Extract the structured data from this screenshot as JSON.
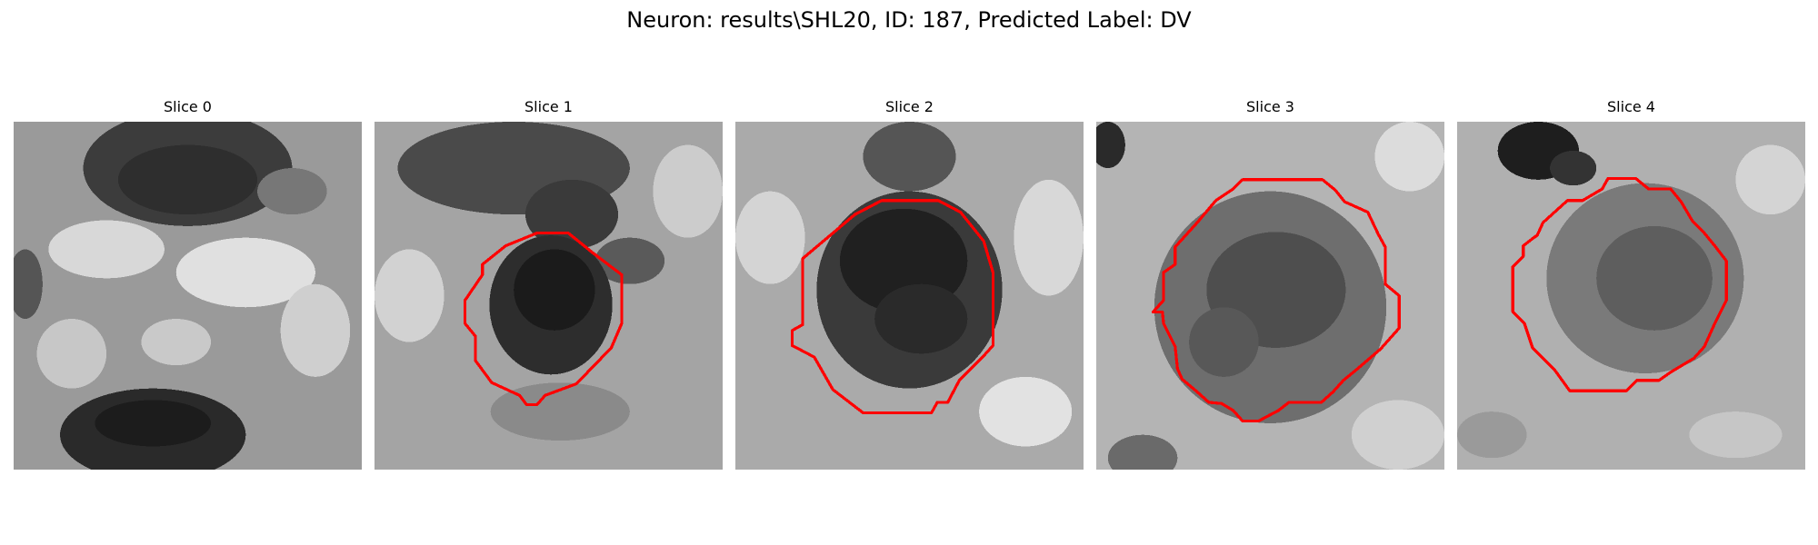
{
  "figure": {
    "title": "Neuron: results\\SHL20, ID: 187, Predicted Label: DV"
  },
  "panels": [
    {
      "title": "Slice 0",
      "has_contour": false,
      "outline_color": "#ff0000"
    },
    {
      "title": "Slice 1",
      "has_contour": true,
      "outline_color": "#ff0000"
    },
    {
      "title": "Slice 2",
      "has_contour": true,
      "outline_color": "#ff0000"
    },
    {
      "title": "Slice 3",
      "has_contour": true,
      "outline_color": "#ff0000"
    },
    {
      "title": "Slice 4",
      "has_contour": true,
      "outline_color": "#ff0000"
    }
  ],
  "style": {
    "colormap": "grayscale",
    "background": "#ffffff"
  }
}
